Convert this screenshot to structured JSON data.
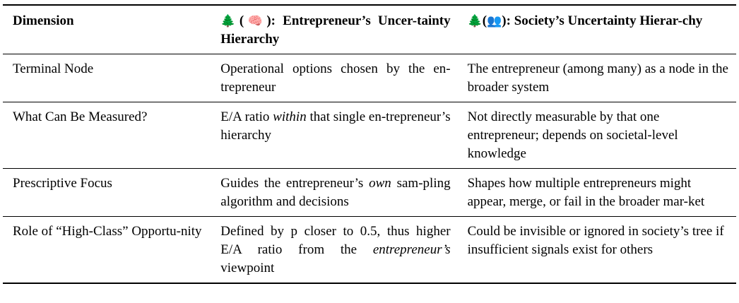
{
  "table": {
    "headers": {
      "dimension": "Dimension",
      "col2_icon_tree": "🌲",
      "col2_icon_brain": "🧠",
      "col2_title": "Entrepreneur’s Uncer-tainty Hierarchy",
      "col3_icon_tree": "🌲",
      "col3_icon_people": "👥",
      "col3_title": "Society’s Uncertainty Hierar-chy"
    },
    "rows": [
      {
        "dimension": "Terminal Node",
        "entrepreneur": "Operational options chosen by the en-trepreneur",
        "society": "The entrepreneur (among many) as a node in the broader system"
      },
      {
        "dimension": "What Can Be Measured?",
        "entrepreneur_pre": "E/A ratio ",
        "entrepreneur_em": "within",
        "entrepreneur_post": " that single en-trepreneur’s hierarchy",
        "society": "Not directly measurable by that one entrepreneur; depends on societal-level knowledge"
      },
      {
        "dimension": "Prescriptive Focus",
        "entrepreneur_pre": "Guides the entrepreneur’s ",
        "entrepreneur_em": "own",
        "entrepreneur_post": " sam-pling algorithm and decisions",
        "society": "Shapes how multiple entrepreneurs might appear, merge, or fail in the broader mar-ket"
      },
      {
        "dimension": "Role of “High-Class” Opportu-nity",
        "entrepreneur_pre": "Defined by p closer to 0.5, thus higher E/A ratio from the ",
        "entrepreneur_em": "entrepreneur’s",
        "entrepreneur_post": " viewpoint",
        "society": "Could be invisible or ignored in society’s tree if insufficient signals exist for others"
      }
    ]
  }
}
